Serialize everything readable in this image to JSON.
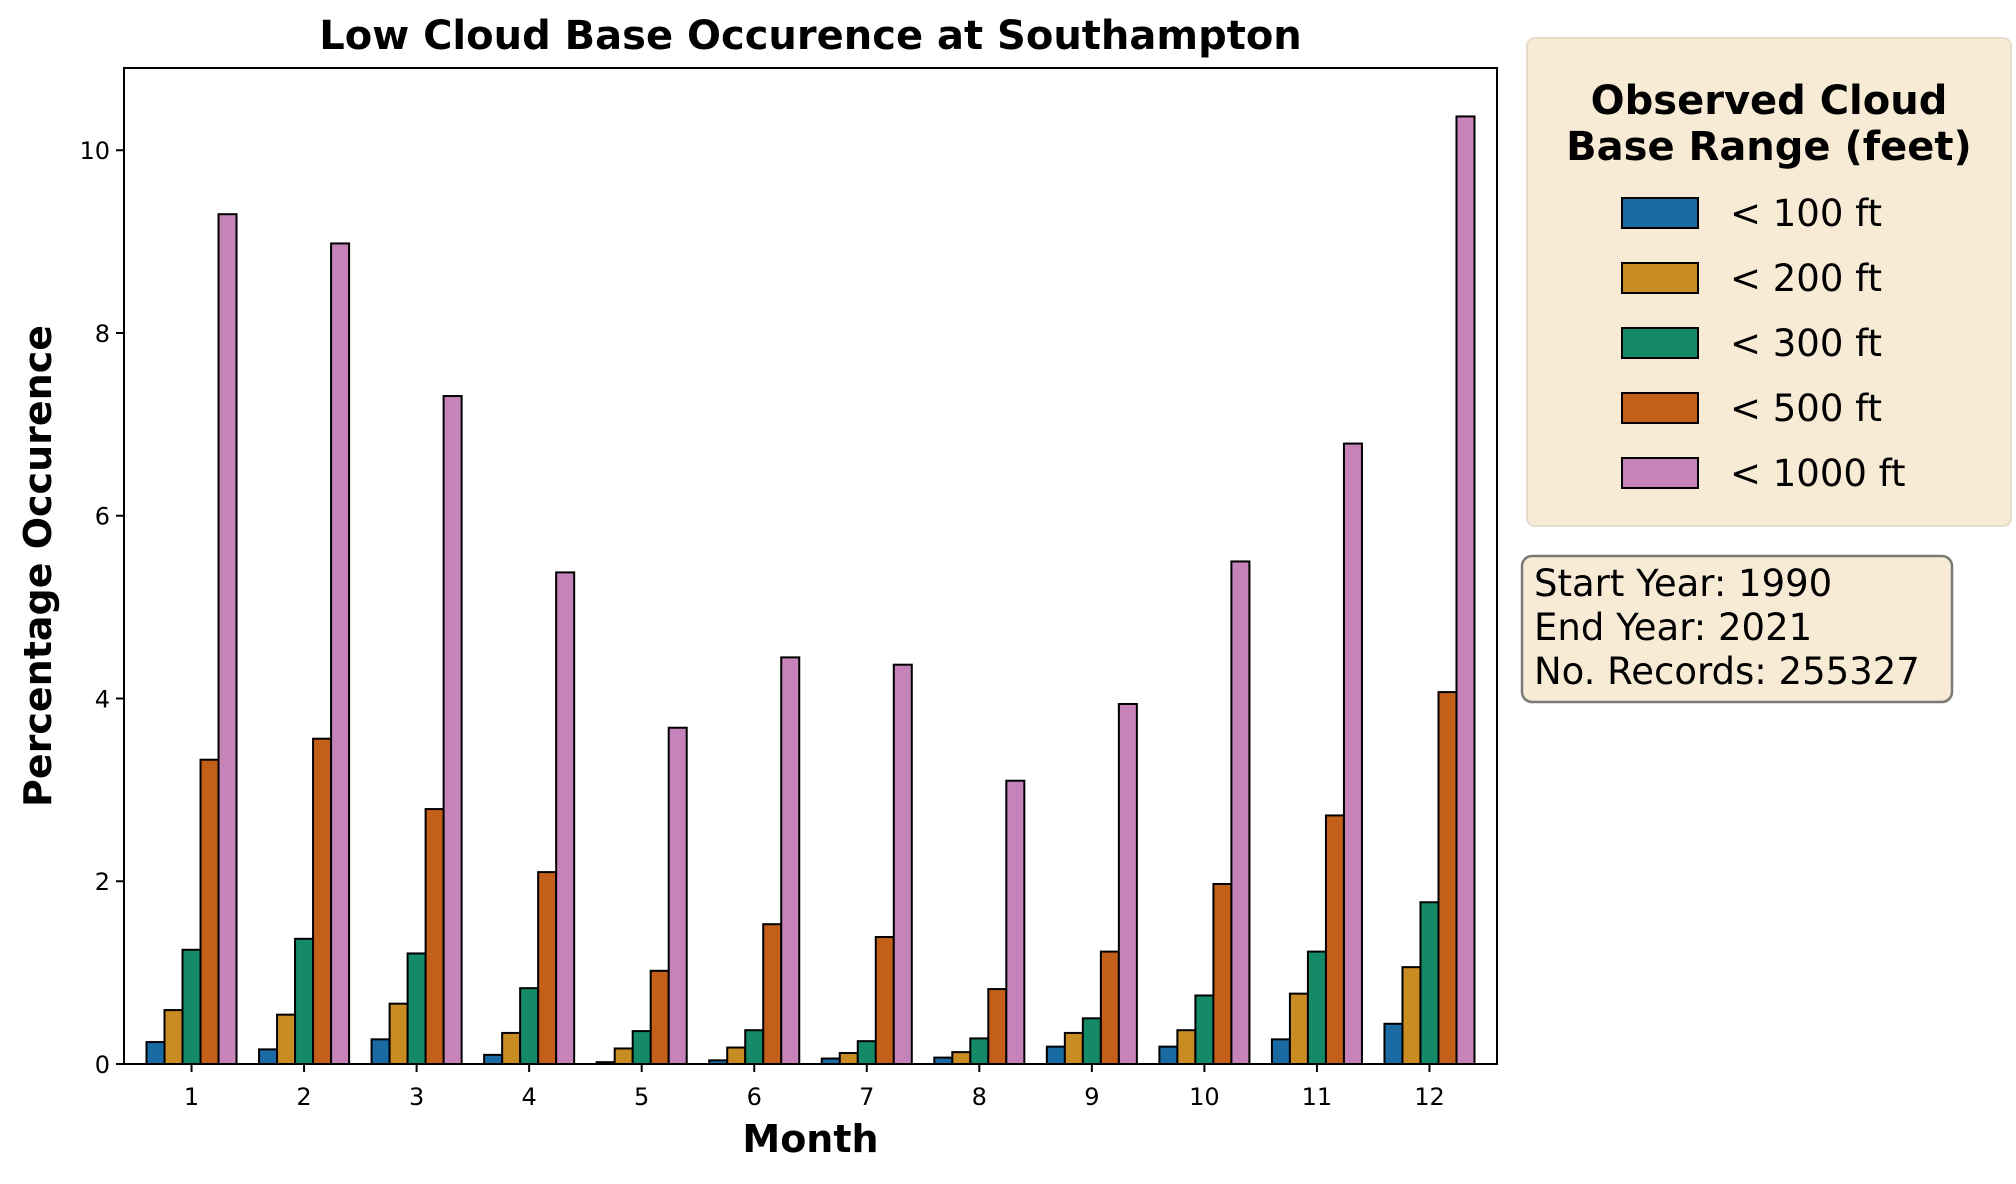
{
  "chart_data": {
    "type": "bar",
    "title": "Low Cloud Base Occurence at Southampton",
    "xlabel": "Month",
    "ylabel": "Percentage Occurence",
    "categories": [
      "1",
      "2",
      "3",
      "4",
      "5",
      "6",
      "7",
      "8",
      "9",
      "10",
      "11",
      "12"
    ],
    "ylim": [
      0,
      10.9
    ],
    "yticks": [
      0,
      2,
      4,
      6,
      8,
      10
    ],
    "grid": false,
    "legend": {
      "title": "Observed Cloud Base Range (feet)",
      "title_lines": [
        "Observed Cloud",
        "Base Range (feet)"
      ],
      "placement": "outside-top-right",
      "background": "#f7ebd6"
    },
    "series": [
      {
        "name": "< 100 ft",
        "color": "#1a6aa3",
        "values": [
          0.24,
          0.16,
          0.27,
          0.1,
          0.02,
          0.04,
          0.06,
          0.07,
          0.19,
          0.19,
          0.27,
          0.44
        ]
      },
      {
        "name": "< 200 ft",
        "color": "#c98c22",
        "values": [
          0.59,
          0.54,
          0.66,
          0.34,
          0.17,
          0.18,
          0.12,
          0.13,
          0.34,
          0.37,
          0.77,
          1.06
        ]
      },
      {
        "name": "< 300 ft",
        "color": "#148a68",
        "values": [
          1.25,
          1.37,
          1.21,
          0.83,
          0.36,
          0.37,
          0.25,
          0.28,
          0.5,
          0.75,
          1.23,
          1.77
        ]
      },
      {
        "name": "< 500 ft",
        "color": "#c45f1a",
        "values": [
          3.33,
          3.56,
          2.79,
          2.1,
          1.02,
          1.53,
          1.39,
          0.82,
          1.23,
          1.97,
          2.72,
          4.07
        ]
      },
      {
        "name": "< 1000 ft",
        "color": "#c583b9",
        "values": [
          9.3,
          8.98,
          7.31,
          5.38,
          3.68,
          4.45,
          4.37,
          3.1,
          3.94,
          5.5,
          6.79,
          10.37
        ]
      }
    ]
  },
  "info_box": {
    "lines": [
      "Start Year: 1990",
      "End Year: 2021",
      "No. Records: 255327"
    ]
  }
}
